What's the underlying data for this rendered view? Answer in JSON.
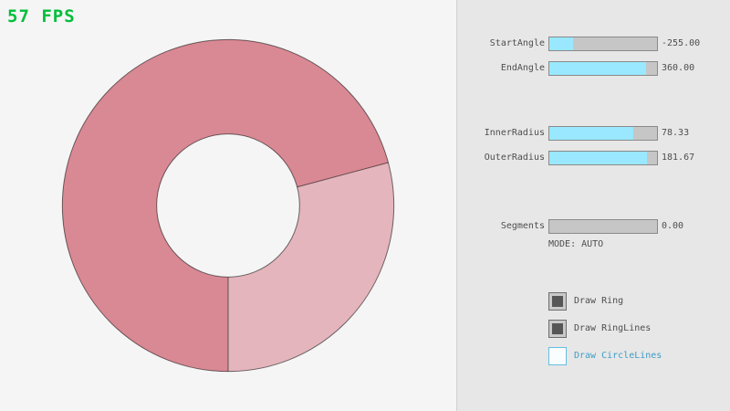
{
  "window": {
    "fps_label": "57 FPS"
  },
  "canvas": {
    "ring": {
      "color_overlap": "#D98994",
      "color_single": "#E4B5BC",
      "outline_color": "rgba(0,0,0,0.55)"
    }
  },
  "controls": {
    "sliders": [
      {
        "label": "StartAngle",
        "value": "-255.00",
        "fill_pct": 21.7
      },
      {
        "label": "EndAngle",
        "value": "360.00",
        "fill_pct": 90.0
      },
      {
        "label": "InnerRadius",
        "value": "78.33",
        "fill_pct": 78.3
      },
      {
        "label": "OuterRadius",
        "value": "181.67",
        "fill_pct": 90.8
      },
      {
        "label": "Segments",
        "value": "0.00",
        "fill_pct": 0
      }
    ],
    "mode_text": "MODE: AUTO",
    "checkboxes": [
      {
        "label": "Draw Ring",
        "checked": true,
        "accent": false
      },
      {
        "label": "Draw RingLines",
        "checked": true,
        "accent": false
      },
      {
        "label": "Draw CircleLines",
        "checked": false,
        "accent": true
      }
    ]
  }
}
